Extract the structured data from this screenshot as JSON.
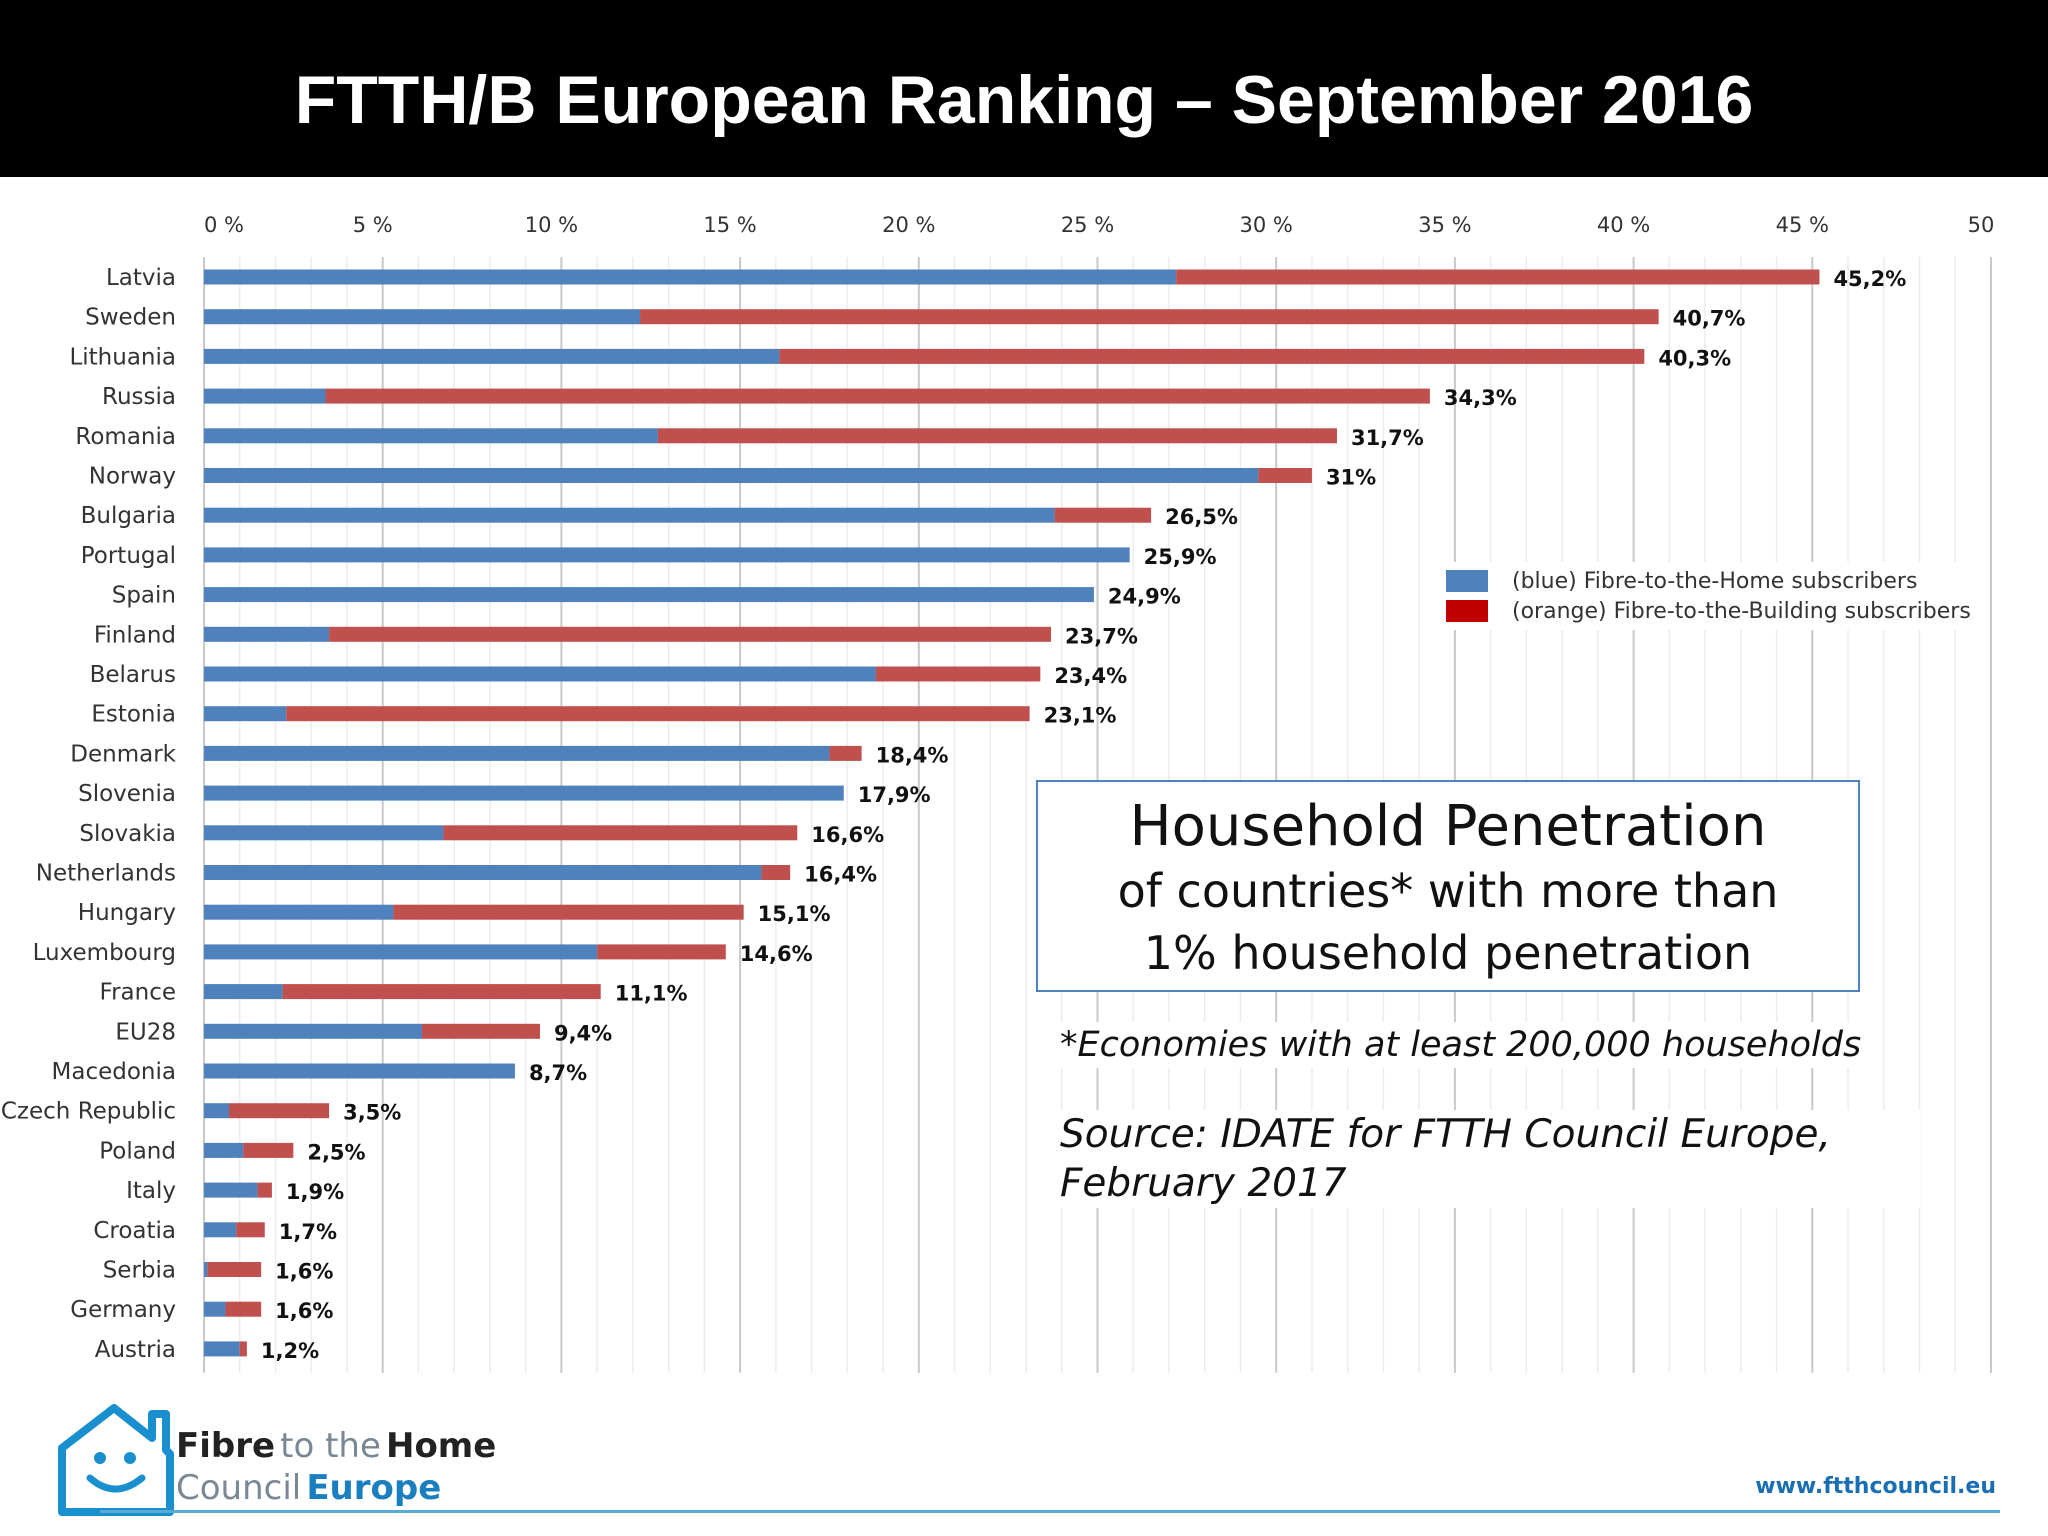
{
  "page": {
    "title": "FTTH/B European Ranking – September 2016"
  },
  "chart_data": {
    "type": "bar",
    "orientation": "horizontal",
    "stacked": true,
    "categories": [
      "Latvia",
      "Sweden",
      "Lithuania",
      "Russia",
      "Romania",
      "Norway",
      "Bulgaria",
      "Portugal",
      "Spain",
      "Finland",
      "Belarus",
      "Estonia",
      "Denmark",
      "Slovenia",
      "Slovakia",
      "Netherlands",
      "Hungary",
      "Luxembourg",
      "France",
      "EU28",
      "Macedonia",
      "Czech Republic",
      "Poland",
      "Italy",
      "Croatia",
      "Serbia",
      "Germany",
      "Austria"
    ],
    "series": [
      {
        "name": "(blue) Fibre-to-the-Home subscribers",
        "color": "#4f81bd",
        "values": [
          27.2,
          12.2,
          16.1,
          3.4,
          12.7,
          29.5,
          23.8,
          25.9,
          24.9,
          3.5,
          18.8,
          2.3,
          17.5,
          17.9,
          6.7,
          15.6,
          5.3,
          11.0,
          2.2,
          6.1,
          8.7,
          0.7,
          1.1,
          1.5,
          0.9,
          0.1,
          0.6,
          1.0
        ]
      },
      {
        "name": "(orange) Fibre-to-the-Building subscribers",
        "color": "#c0504d",
        "values": [
          18.0,
          28.5,
          24.2,
          30.9,
          19.0,
          1.5,
          2.7,
          0.0,
          0.0,
          20.2,
          4.6,
          20.8,
          0.9,
          0.0,
          9.9,
          0.8,
          9.8,
          3.6,
          8.9,
          3.3,
          0.0,
          2.8,
          1.4,
          0.4,
          0.8,
          1.5,
          1.0,
          0.2
        ]
      }
    ],
    "value_labels": [
      "45,2%",
      "40,7%",
      "40,3%",
      "34,3%",
      "31,7%",
      "31%",
      "26,5%",
      "25,9%",
      "24,9%",
      "23,7%",
      "23,4%",
      "23,1%",
      "18,4%",
      "17,9%",
      "16,6%",
      "16,4%",
      "15,1%",
      "14,6%",
      "11,1%",
      "9,4%",
      "8,7%",
      "3,5%",
      "2,5%",
      "1,9%",
      "1,7%",
      "1,6%",
      "1,6%",
      "1,2%"
    ],
    "totals": [
      45.2,
      40.7,
      40.3,
      34.3,
      31.7,
      31,
      26.5,
      25.9,
      24.9,
      23.7,
      23.4,
      23.1,
      18.4,
      17.9,
      16.6,
      16.4,
      15.1,
      14.6,
      11.1,
      9.4,
      8.7,
      3.5,
      2.5,
      1.9,
      1.7,
      1.6,
      1.6,
      1.2
    ],
    "x_ticks": [
      {
        "value": 0,
        "label": "0  %"
      },
      {
        "value": 5,
        "label": "5  %"
      },
      {
        "value": 10,
        "label": "10  %"
      },
      {
        "value": 15,
        "label": "15  %"
      },
      {
        "value": 20,
        "label": "20  %"
      },
      {
        "value": 25,
        "label": "25  %"
      },
      {
        "value": 30,
        "label": "30  %"
      },
      {
        "value": 35,
        "label": "35  %"
      },
      {
        "value": 40,
        "label": "40  %"
      },
      {
        "value": 45,
        "label": "45  %"
      },
      {
        "value": 50,
        "label": "50"
      }
    ],
    "xlim": [
      0,
      50
    ],
    "x_axis_position": "top",
    "grid": true,
    "legend_position": "right"
  },
  "callout": {
    "line1": "Household Penetration",
    "line2": "of countries* with more than",
    "line3": "1% household penetration"
  },
  "notes": {
    "footnote": "*Economies with at least 200,000 households",
    "source_line1": "Source: IDATE for FTTH Council Europe,",
    "source_line2": "February 2017"
  },
  "branding": {
    "logo_icon": "house-smiley-icon",
    "word1": "Fibre",
    "word2": "to the",
    "word3": "Home",
    "word4": "Council",
    "word5": "Europe",
    "url": "www.ftthcouncil.eu"
  }
}
